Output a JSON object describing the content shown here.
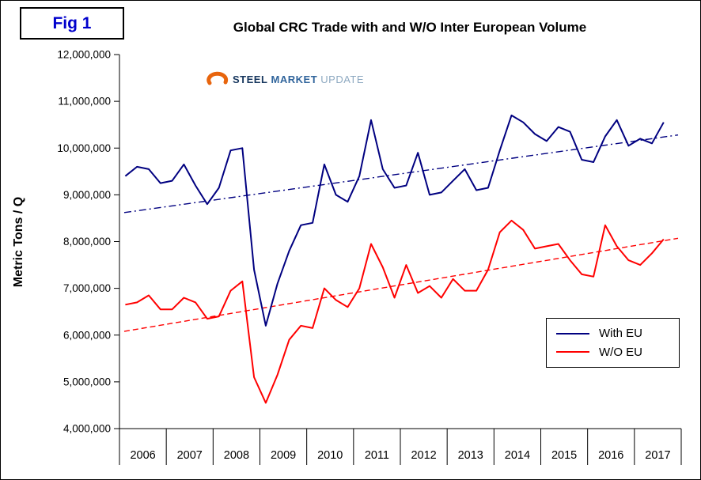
{
  "figure": {
    "label": "Fig 1"
  },
  "logo": {
    "word1": "STEEL",
    "word2": "MARKET",
    "word3": "UPDATE",
    "swoosh_color": "#e8650d"
  },
  "chart_data": {
    "type": "line",
    "title": "Global CRC Trade with and W/O Inter European Volume",
    "xlabel": "",
    "ylabel": "Metric Tons / Q",
    "ylim": [
      4000000,
      12000000
    ],
    "y_tick_step": 1000000,
    "y_tick_labels": [
      "4,000,000",
      "5,000,000",
      "6,000,000",
      "7,000,000",
      "8,000,000",
      "9,000,000",
      "10,000,000",
      "11,000,000",
      "12,000,000"
    ],
    "categories": [
      "2006",
      "2007",
      "2008",
      "2009",
      "2010",
      "2011",
      "2012",
      "2013",
      "2014",
      "2015",
      "2016",
      "2017"
    ],
    "points_per_category": 4,
    "grid": false,
    "legend_position": "bottom-right",
    "series": [
      {
        "name": "With EU",
        "color": "#000080",
        "line_style": "solid",
        "values": [
          9400000,
          9600000,
          9550000,
          9250000,
          9300000,
          9650000,
          9200000,
          8800000,
          9150000,
          9950000,
          10000000,
          7400000,
          6200000,
          7100000,
          7800000,
          8350000,
          8400000,
          9650000,
          9000000,
          8850000,
          9400000,
          10600000,
          9550000,
          9150000,
          9200000,
          9900000,
          9000000,
          9050000,
          9300000,
          9550000,
          9100000,
          9150000,
          9950000,
          10700000,
          10550000,
          10300000,
          10150000,
          10450000,
          10350000,
          9750000,
          9700000,
          10250000,
          10600000,
          10050000,
          10200000,
          10100000,
          10550000
        ],
        "trend": {
          "style": "dashdot",
          "start": 8620000,
          "end": 10280000
        }
      },
      {
        "name": "W/O EU",
        "color": "#ff0000",
        "line_style": "solid",
        "values": [
          6650000,
          6700000,
          6850000,
          6550000,
          6550000,
          6800000,
          6700000,
          6350000,
          6400000,
          6950000,
          7150000,
          5100000,
          4550000,
          5150000,
          5900000,
          6200000,
          6150000,
          7000000,
          6750000,
          6600000,
          7000000,
          7950000,
          7450000,
          6800000,
          7500000,
          6900000,
          7050000,
          6800000,
          7200000,
          6950000,
          6950000,
          7400000,
          8200000,
          8450000,
          8250000,
          7850000,
          7900000,
          7950000,
          7600000,
          7300000,
          7250000,
          8350000,
          7900000,
          7600000,
          7500000,
          7750000,
          8050000
        ],
        "trend": {
          "style": "dashed",
          "start": 6080000,
          "end": 8070000
        }
      }
    ]
  }
}
